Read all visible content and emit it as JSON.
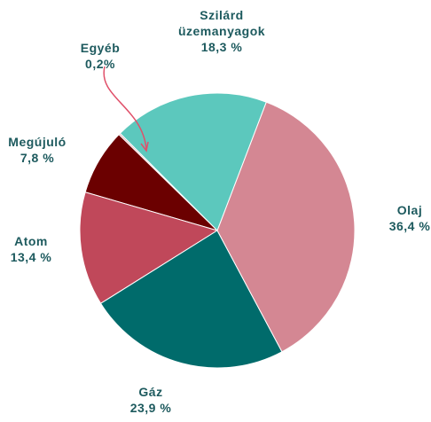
{
  "chart_data": {
    "type": "pie",
    "categories": [
      "Szilárd üzemanyagok",
      "Olaj",
      "Gáz",
      "Atom",
      "Megújuló",
      "Egyéb"
    ],
    "values": [
      18.3,
      36.4,
      23.9,
      13.4,
      7.8,
      0.2
    ],
    "value_labels": [
      "18,3 %",
      "36,4 %",
      "23,9 %",
      "13,4 %",
      "7,8 %",
      "0,2%"
    ],
    "colors": [
      "#5cc8bd",
      "#d48793",
      "#006b6b",
      "#c0485a",
      "#6b0000",
      "#e0a0a8"
    ]
  }
}
